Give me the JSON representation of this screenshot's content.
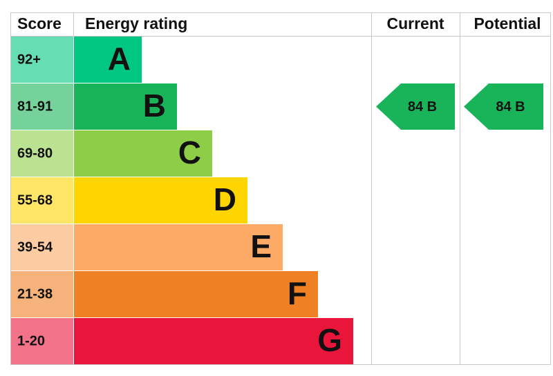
{
  "headers": {
    "score": "Score",
    "rating": "Energy rating",
    "current": "Current",
    "potential": "Potential"
  },
  "rows": [
    {
      "score": "92+",
      "rating": "A",
      "color": "#00c781"
    },
    {
      "score": "81-91",
      "rating": "B",
      "color": "#19b459"
    },
    {
      "score": "69-80",
      "rating": "C",
      "color": "#8dce46"
    },
    {
      "score": "55-68",
      "rating": "D",
      "color": "#ffd500"
    },
    {
      "score": "39-54",
      "rating": "E",
      "color": "#fcaa65"
    },
    {
      "score": "21-38",
      "rating": "F",
      "color": "#ef8023"
    },
    {
      "score": "1-20",
      "rating": "G",
      "color": "#e9153b"
    }
  ],
  "current": {
    "label": "84 B",
    "color": "#19b459"
  },
  "potential": {
    "label": "84 B",
    "color": "#19b459"
  }
}
